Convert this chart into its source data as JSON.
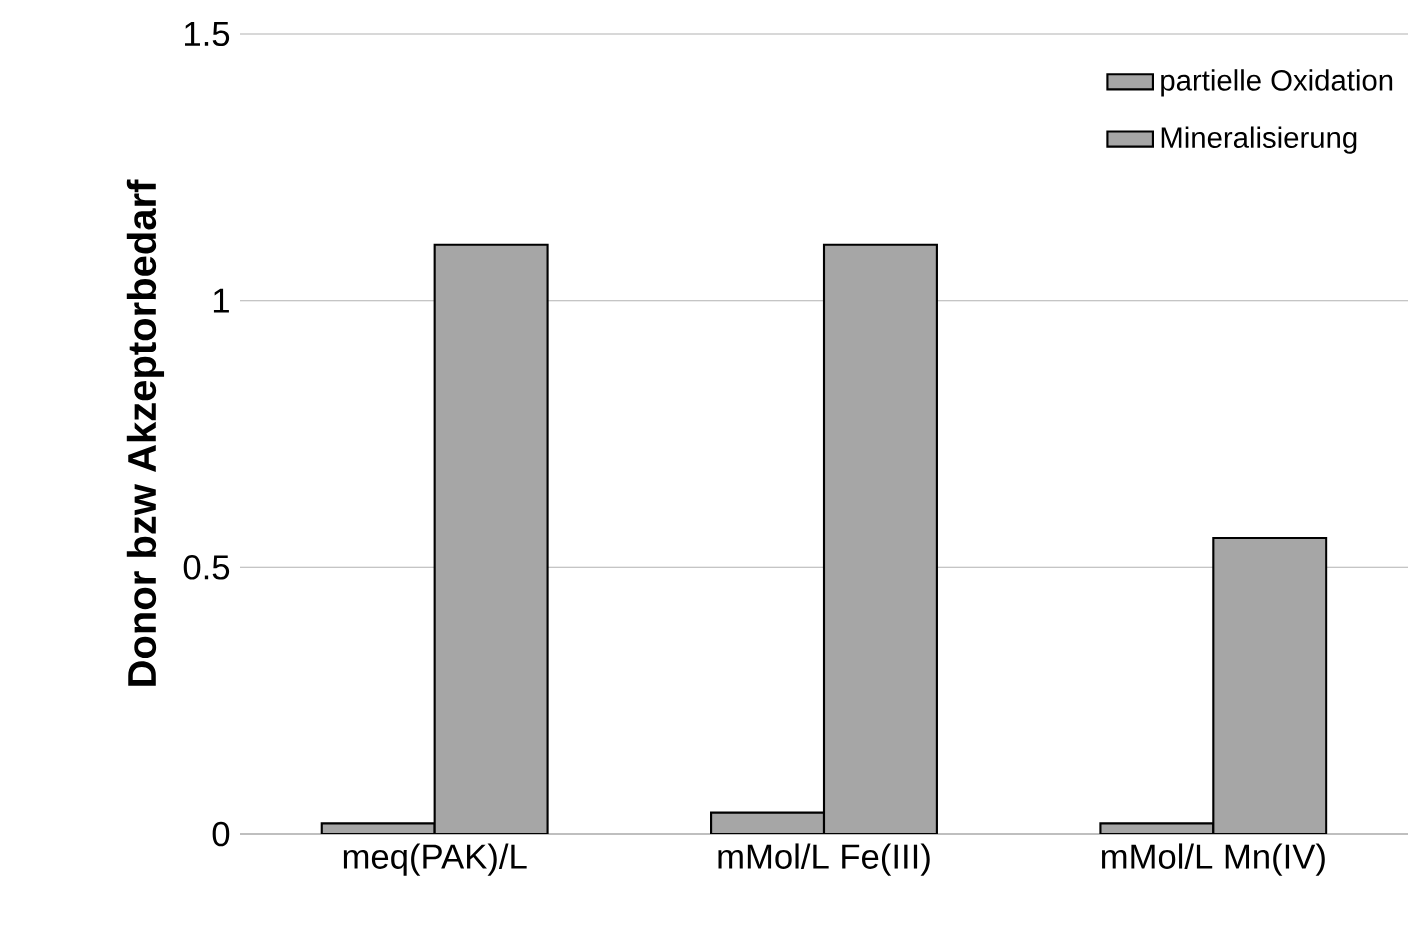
{
  "chart_data": {
    "type": "bar",
    "ylabel": "Donor bzw Akzeptorbedarf",
    "categories": [
      "meq(PAK)/L",
      "mMol/L Fe(III)",
      "mMol/L Mn(IV)"
    ],
    "series": [
      {
        "name": "partielle Oxidation",
        "color": "#a6a6a6",
        "values": [
          0.02,
          0.04,
          0.02
        ]
      },
      {
        "name": "Mineralisierung",
        "color": "#a6a6a6",
        "values": [
          1.105,
          1.105,
          0.555
        ]
      }
    ],
    "ylim": [
      0,
      1.5
    ],
    "yticks": [
      0,
      0.5,
      1,
      1.5
    ],
    "grid": "y",
    "legend": "top right"
  }
}
